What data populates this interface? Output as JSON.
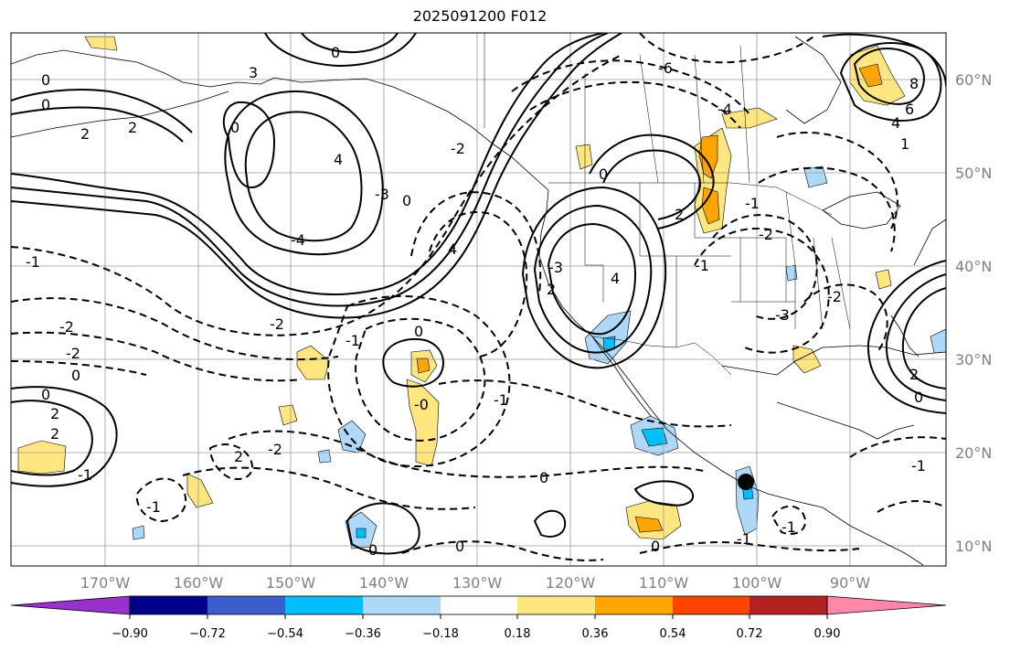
{
  "title": "2025091200 F012",
  "map": {
    "lat_labels": [
      "60°N",
      "50°N",
      "40°N",
      "30°N",
      "20°N",
      "10°N"
    ],
    "lon_labels": [
      "170°W",
      "160°W",
      "150°W",
      "140°W",
      "130°W",
      "120°W",
      "110°W",
      "100°W",
      "90°W"
    ],
    "contour_labels": [
      "0",
      "2",
      "2",
      "0",
      "-2",
      "-2",
      "0",
      "0",
      "2",
      "2",
      "-1",
      "-1",
      "-1",
      "3",
      "0",
      "0",
      "4",
      "-4",
      "0",
      "-1",
      "-2",
      "-3",
      "4",
      "-3",
      "2",
      "4",
      "-2",
      "2",
      "-0",
      "0",
      "0",
      "-1",
      "0",
      "-1",
      "-2",
      "-6",
      "-4",
      "0",
      "2",
      "-1",
      "-2",
      "-3",
      "8",
      "6",
      "4",
      "1",
      "2",
      "0",
      "-1",
      "-2",
      "-1",
      "0",
      "-1",
      "0"
    ],
    "marker": "filled black circle near 17°N 101°W"
  },
  "colorbar": {
    "tick_labels": [
      "−0.90",
      "−0.72",
      "−0.54",
      "−0.36",
      "−0.18",
      "0.18",
      "0.36",
      "0.54",
      "0.72",
      "0.90"
    ],
    "colors": [
      "#9932cc",
      "#00008b",
      "#3a5fcd",
      "#00bfff",
      "#add8f7",
      "#ffffff",
      "#ffe680",
      "#ffa500",
      "#ff4500",
      "#b22222",
      "#ff88aa"
    ]
  }
}
